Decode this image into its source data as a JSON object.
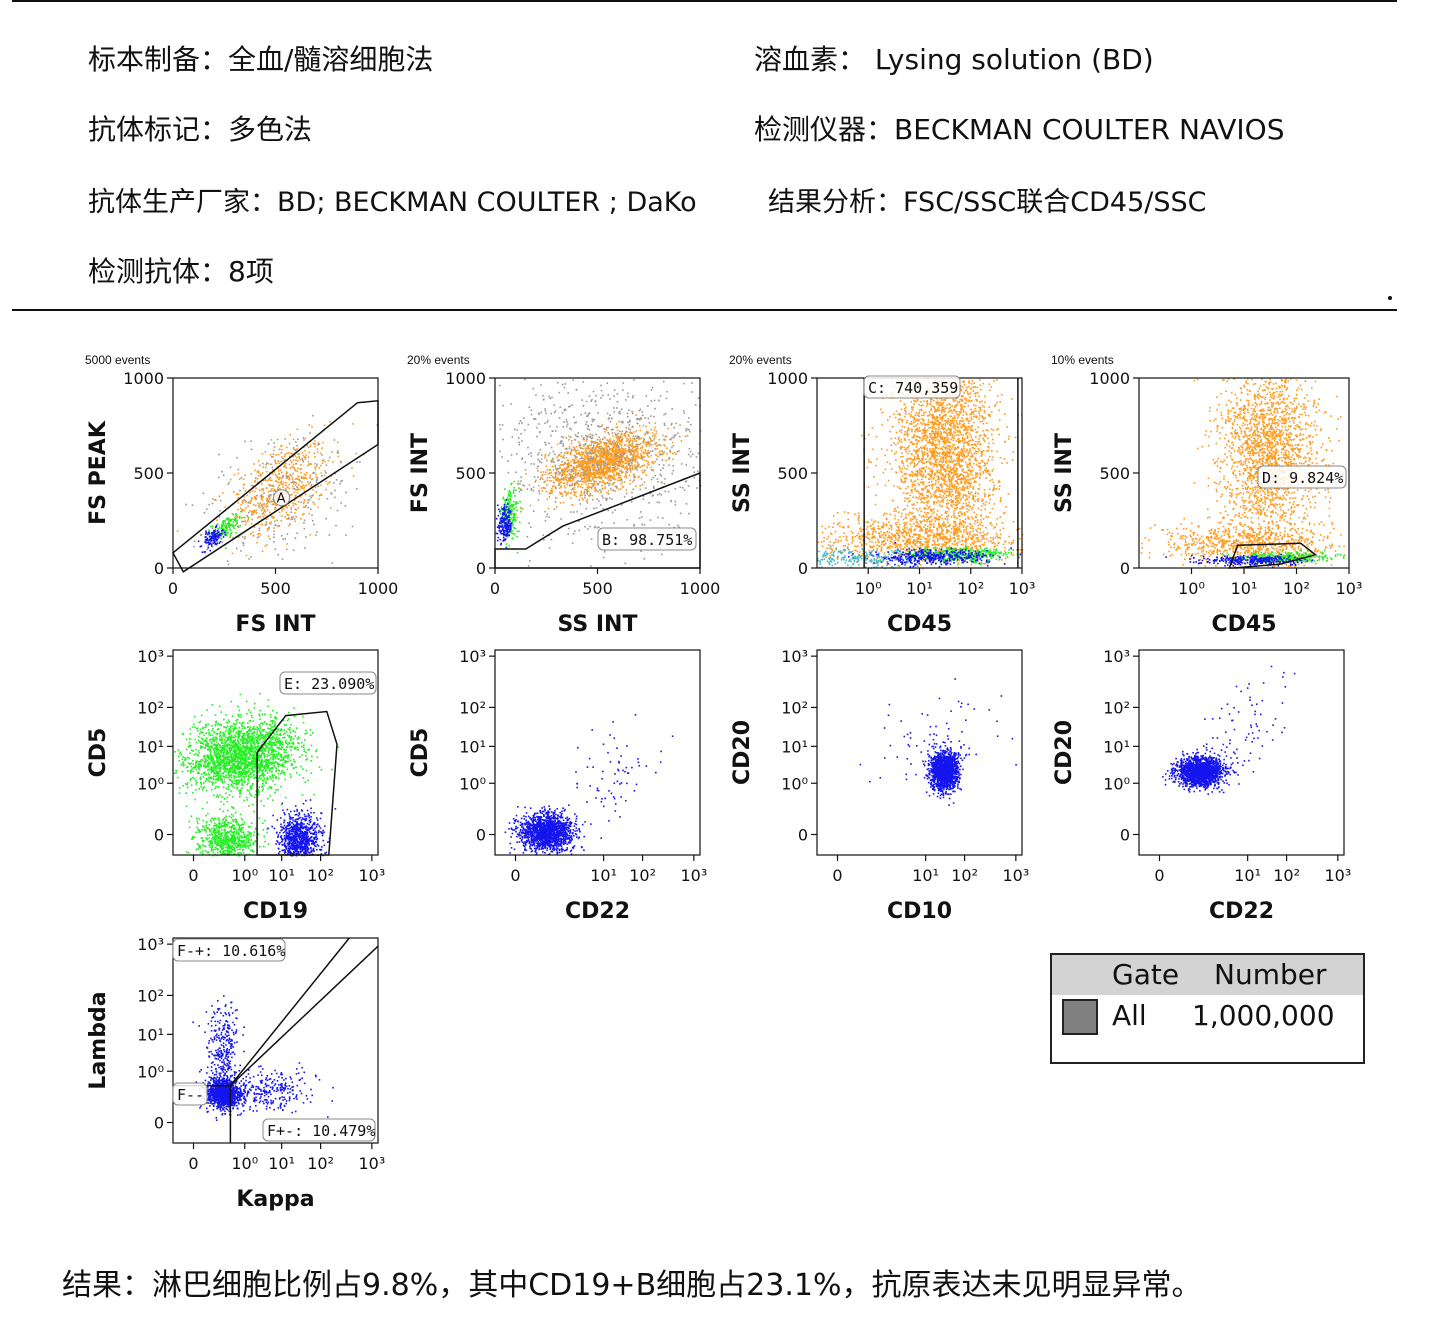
{
  "header": {
    "sample_prep": "标本制备：全血/髓溶细胞法",
    "lysing": "溶血素： Lysing solution (BD)",
    "labeling": "抗体标记：多色法",
    "instrument": "检测仪器：BECKMAN COULTER NAVIOS",
    "manufacturer": "抗体生产厂家：BD; BECKMAN COULTER ; DaKo",
    "analysis": "结果分析：FSC/SSC联合CD45/SSC",
    "antibodies": "检测抗体：8项"
  },
  "colors": {
    "orange": "#ff9a1c",
    "green": "#22ee22",
    "blue": "#1515ee",
    "teal": "#3fb7c8",
    "gray": "#9a9a9a"
  },
  "chart_data": [
    {
      "type": "scatter",
      "events_label": "5000 events",
      "xlabel": "FS INT",
      "ylabel": "FS PEAK",
      "xscale": "linear",
      "yscale": "linear",
      "xlim": [
        0,
        1000
      ],
      "ylim": [
        0,
        1000
      ],
      "xticks": [
        "0",
        "500",
        "1000"
      ],
      "yticks": [
        "0",
        "500",
        "1000"
      ],
      "gate": {
        "label": "A",
        "type": "polygon"
      },
      "populations": [
        {
          "color": "orange",
          "cx": 520,
          "cy": 420,
          "sx": 140,
          "sy": 120,
          "rot": 0.5,
          "n": 600
        },
        {
          "color": "green",
          "cx": 260,
          "cy": 220,
          "sx": 40,
          "sy": 30,
          "rot": 0.5,
          "n": 120
        },
        {
          "color": "blue",
          "cx": 190,
          "cy": 160,
          "sx": 30,
          "sy": 25,
          "rot": 0.5,
          "n": 120
        },
        {
          "color": "gray",
          "cx": 520,
          "cy": 380,
          "sx": 250,
          "sy": 200,
          "rot": 0.5,
          "n": 260
        }
      ]
    },
    {
      "type": "scatter",
      "events_label": "20% events",
      "xlabel": "SS INT",
      "ylabel": "FS INT",
      "xscale": "linear",
      "yscale": "linear",
      "xlim": [
        0,
        1000
      ],
      "ylim": [
        0,
        1000
      ],
      "xticks": [
        "0",
        "500",
        "1000"
      ],
      "yticks": [
        "0",
        "500",
        "1000"
      ],
      "gate": {
        "label": "B: 98.751%",
        "type": "polygon"
      },
      "populations": [
        {
          "color": "orange",
          "cx": 520,
          "cy": 560,
          "sx": 140,
          "sy": 70,
          "rot": 0.3,
          "n": 1600
        },
        {
          "color": "green",
          "cx": 70,
          "cy": 290,
          "sx": 22,
          "sy": 60,
          "rot": 0,
          "n": 200
        },
        {
          "color": "blue",
          "cx": 45,
          "cy": 230,
          "sx": 18,
          "sy": 45,
          "rot": 0,
          "n": 200
        },
        {
          "color": "gray",
          "cx": 520,
          "cy": 600,
          "sx": 280,
          "sy": 220,
          "rot": 0,
          "n": 900
        }
      ]
    },
    {
      "type": "scatter",
      "events_label": "20% events",
      "xlabel": "CD45",
      "ylabel": "SS INT",
      "xscale": "log",
      "yscale": "linear",
      "xlim": [
        0.1,
        1000
      ],
      "ylim": [
        0,
        1000
      ],
      "xticks": [
        "10⁰",
        "10¹",
        "10²",
        "10³"
      ],
      "yticks": [
        "0",
        "500",
        "1000"
      ],
      "gate": {
        "label": "C: 740,359",
        "type": "region"
      },
      "populations": [
        {
          "color": "orange",
          "cx": 30,
          "cy": 620,
          "sx": 0.22,
          "sy": 260,
          "rot": 0,
          "n": 2600
        },
        {
          "color": "orange",
          "cx": 10,
          "cy": 160,
          "sx": 0.45,
          "sy": 60,
          "rot": 0,
          "n": 900
        },
        {
          "color": "green",
          "cx": 60,
          "cy": 75,
          "sx": 0.22,
          "sy": 18,
          "rot": 0,
          "n": 400
        },
        {
          "color": "blue",
          "cx": 15,
          "cy": 60,
          "sx": 0.25,
          "sy": 20,
          "rot": 0,
          "n": 400
        },
        {
          "color": "teal",
          "cx": 0.4,
          "cy": 50,
          "sx": 0.35,
          "sy": 25,
          "rot": 0,
          "n": 250
        }
      ]
    },
    {
      "type": "scatter",
      "events_label": "10% events",
      "xlabel": "CD45",
      "ylabel": "SS INT",
      "xscale": "log",
      "yscale": "linear",
      "xlim": [
        0.1,
        1000
      ],
      "ylim": [
        0,
        1000
      ],
      "xticks": [
        "10⁰",
        "10¹",
        "10²",
        "10³"
      ],
      "yticks": [
        "0",
        "500",
        "1000"
      ],
      "gate": {
        "label": "D: 9.824%",
        "type": "polygon"
      },
      "populations": [
        {
          "color": "orange",
          "cx": 30,
          "cy": 620,
          "sx": 0.2,
          "sy": 260,
          "rot": 0,
          "n": 2000
        },
        {
          "color": "orange",
          "cx": 10,
          "cy": 130,
          "sx": 0.4,
          "sy": 50,
          "rot": 0,
          "n": 700
        },
        {
          "color": "green",
          "cx": 60,
          "cy": 60,
          "sx": 0.2,
          "sy": 14,
          "rot": 0,
          "n": 300
        },
        {
          "color": "blue",
          "cx": 15,
          "cy": 45,
          "sx": 0.2,
          "sy": 12,
          "rot": 0,
          "n": 300
        }
      ]
    },
    {
      "type": "scatter",
      "xlabel": "CD19",
      "ylabel": "CD5",
      "xscale": "biexp",
      "yscale": "biexp",
      "xticks": [
        "0",
        "10⁰",
        "10¹",
        "10²",
        "10³"
      ],
      "yticks": [
        "0",
        "10⁰",
        "10¹",
        "10²",
        "10³"
      ],
      "gate": {
        "label": "E: 23.090%",
        "type": "polygon"
      },
      "populations": [
        {
          "color": "green",
          "cx": 0.9,
          "cy": 1.5,
          "sx": 0.55,
          "sy": 0.35,
          "rot": 0.15,
          "n": 2200
        },
        {
          "color": "green",
          "cx": 0.6,
          "cy": -0.1,
          "sx": 0.28,
          "sy": 0.22,
          "rot": 0,
          "n": 700
        },
        {
          "color": "blue",
          "cx": 2.0,
          "cy": -0.1,
          "sx": 0.2,
          "sy": 0.25,
          "rot": 0,
          "n": 900
        }
      ]
    },
    {
      "type": "scatter",
      "xlabel": "CD22",
      "ylabel": "CD5",
      "xscale": "biexp",
      "yscale": "biexp",
      "xticks": [
        "0",
        "10¹",
        "10²",
        "10³"
      ],
      "yticks": [
        "0",
        "10⁰",
        "10¹",
        "10²",
        "10³"
      ],
      "populations": [
        {
          "color": "blue",
          "cx": 0.55,
          "cy": 0.05,
          "sx": 0.25,
          "sy": 0.18,
          "rot": 0,
          "n": 1500
        },
        {
          "color": "blue",
          "cx": 1.8,
          "cy": 1.0,
          "sx": 0.5,
          "sy": 0.6,
          "rot": 0.6,
          "n": 70
        }
      ]
    },
    {
      "type": "scatter",
      "xlabel": "CD10",
      "ylabel": "CD20",
      "xscale": "biexp",
      "yscale": "biexp",
      "xticks": [
        "0",
        "10¹",
        "10²",
        "10³"
      ],
      "yticks": [
        "0",
        "10⁰",
        "10¹",
        "10²",
        "10³"
      ],
      "populations": [
        {
          "color": "blue",
          "cx": 2.0,
          "cy": 1.2,
          "sx": 0.13,
          "sy": 0.18,
          "rot": 0,
          "n": 1500
        },
        {
          "color": "blue",
          "cx": 1.9,
          "cy": 1.8,
          "sx": 0.6,
          "sy": 0.5,
          "rot": 0,
          "n": 80
        }
      ]
    },
    {
      "type": "scatter",
      "xlabel": "CD22",
      "ylabel": "CD20",
      "xscale": "biexp",
      "yscale": "biexp",
      "xticks": [
        "0",
        "10¹",
        "10²",
        "10³"
      ],
      "yticks": [
        "0",
        "10⁰",
        "10¹",
        "10²",
        "10³"
      ],
      "populations": [
        {
          "color": "blue",
          "cx": 0.75,
          "cy": 1.2,
          "sx": 0.22,
          "sy": 0.14,
          "rot": 0,
          "n": 1500
        },
        {
          "color": "blue",
          "cx": 1.6,
          "cy": 2.0,
          "sx": 0.6,
          "sy": 0.5,
          "rot": 0.6,
          "n": 80
        }
      ]
    },
    {
      "type": "scatter",
      "xlabel": "Kappa",
      "ylabel": "Lambda",
      "xscale": "biexp",
      "yscale": "biexp",
      "xticks": [
        "0",
        "10⁰",
        "10¹",
        "10²",
        "10³"
      ],
      "yticks": [
        "0",
        "10⁰",
        "10¹",
        "10²",
        "10³"
      ],
      "gates": [
        {
          "label": "F-+: 10.616%"
        },
        {
          "label": "F--"
        },
        {
          "label": "F+-: 10.479%"
        }
      ],
      "populations": [
        {
          "color": "blue",
          "cx": 0.55,
          "cy": 0.55,
          "sx": 0.15,
          "sy": 0.13,
          "rot": 0,
          "n": 1200
        },
        {
          "color": "blue",
          "cx": 0.55,
          "cy": 1.4,
          "sx": 0.15,
          "sy": 0.45,
          "rot": 0,
          "n": 300
        },
        {
          "color": "blue",
          "cx": 1.3,
          "cy": 0.6,
          "sx": 0.45,
          "sy": 0.2,
          "rot": 0,
          "n": 300
        }
      ]
    }
  ],
  "legend": {
    "col_gate": "Gate",
    "col_number": "Number",
    "row_gate": "All",
    "row_number": "1,000,000"
  },
  "result": "结果：淋巴细胞比例占9.8%，其中CD19+B细胞占23.1%，抗原表达未见明显异常。"
}
